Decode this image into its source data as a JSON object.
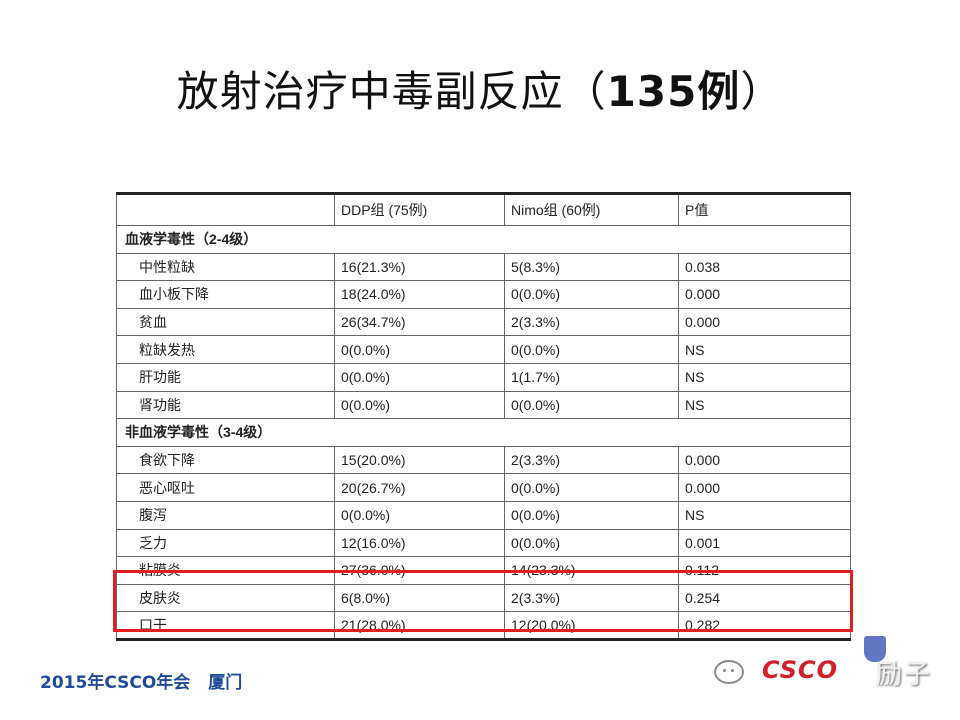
{
  "title": {
    "text": "放射治疗中毒副反应（",
    "count": "135例",
    "close": "）"
  },
  "table": {
    "headers": [
      "",
      "DDP组 (75例)",
      "Nimo组 (60例)",
      "P值"
    ],
    "sections": [
      {
        "label": "血液学毒性（2-4级）",
        "rows": [
          [
            "中性粒缺",
            "16(21.3%)",
            "5(8.3%)",
            "0.038"
          ],
          [
            "血小板下降",
            "18(24.0%)",
            "0(0.0%)",
            "0.000"
          ],
          [
            "贫血",
            "26(34.7%)",
            "2(3.3%)",
            "0.000"
          ],
          [
            "粒缺发热",
            "0(0.0%)",
            "0(0.0%)",
            "NS"
          ],
          [
            "肝功能",
            "0(0.0%)",
            "1(1.7%)",
            "NS"
          ],
          [
            "肾功能",
            "0(0.0%)",
            "0(0.0%)",
            "NS"
          ]
        ]
      },
      {
        "label": "非血液学毒性（3-4级）",
        "rows": [
          [
            "食欲下降",
            "15(20.0%)",
            "2(3.3%)",
            "0.000"
          ],
          [
            "恶心呕吐",
            "20(26.7%)",
            "0(0.0%)",
            "0.000"
          ],
          [
            "腹泻",
            "0(0.0%)",
            "0(0.0%)",
            "NS"
          ],
          [
            "乏力",
            "12(16.0%)",
            "0(0.0%)",
            "0.001"
          ],
          [
            "粘膜炎",
            "27(36.0%)",
            "14(23.3%)",
            "0.112"
          ],
          [
            "皮肤炎",
            "6(8.0%)",
            "2(3.3%)",
            "0.254"
          ],
          [
            "口干",
            "21(28.0%)",
            "12(20.0%)",
            "0.282"
          ]
        ]
      }
    ],
    "highlight_color": "#e41e1e"
  },
  "footer": {
    "event": "2015年CSCO年会",
    "city": "厦门"
  },
  "watermark": {
    "logo_text": "CSCO",
    "text": "励子",
    "icon": "wechat-chat-icon"
  }
}
